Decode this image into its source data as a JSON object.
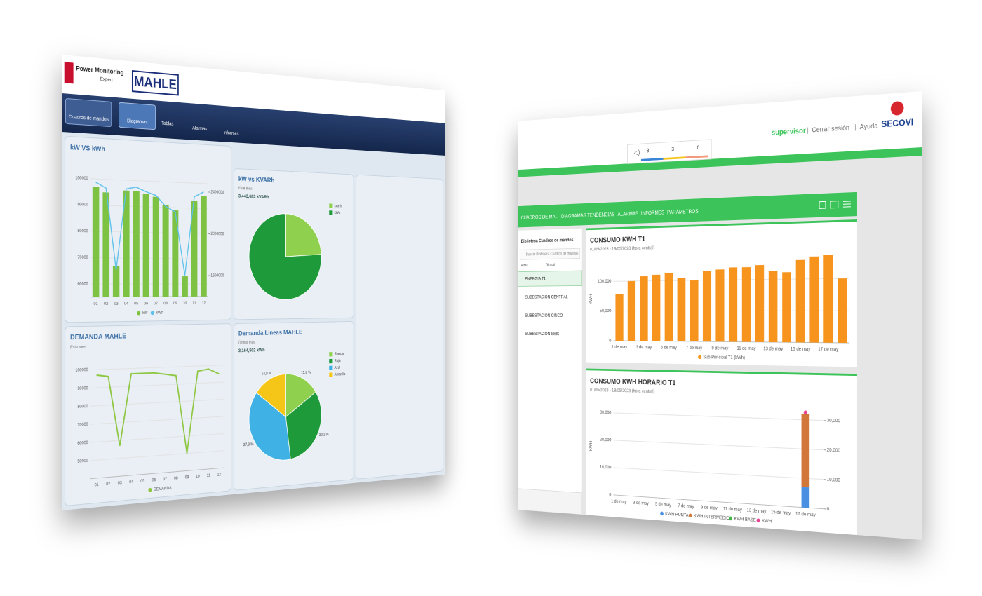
{
  "left_screen": {
    "header": {
      "product": [
        "Power Monitoring",
        "Expert"
      ],
      "logo": "MAHLE"
    },
    "nav": [
      "Cuadros de mandos",
      "Diagramas",
      "Tablas",
      "Alarmas",
      "Informes"
    ],
    "charts": [
      {
        "type": "bar",
        "title": "kW VS kWh",
        "categories": [
          "01",
          "02",
          "03",
          "04",
          "05",
          "06",
          "07",
          "08",
          "09",
          "10",
          "11",
          "12"
        ],
        "series": [
          {
            "name": "kW",
            "color": "#7dc242",
            "values": [
              97000,
              95000,
              67000,
              96000,
              96000,
              95000,
              94000,
              91000,
              89000,
              63000,
              93000,
              95000
            ]
          },
          {
            "name": "kWh",
            "color": "#5bc0eb",
            "axis": "y2",
            "values": [
              2450000,
              2400000,
              1650000,
              2400000,
              2420000,
              2380000,
              2350000,
              2250000,
              2200000,
              1600000,
              2350000,
              2400000
            ]
          }
        ],
        "ylim": [
          55000,
          105000
        ],
        "yticks": [
          60000,
          70000,
          80000,
          90000,
          100000
        ],
        "y2lim": [
          1400000,
          2600000
        ],
        "y2ticks": [
          1600000,
          2000000,
          2400000
        ]
      },
      {
        "type": "pie",
        "title": "kW vs KVARh",
        "subtitle": "Este mes",
        "total": "3,443,683 kVARh",
        "categories": [
          "kvarh",
          "kWh"
        ],
        "colors": [
          "#8fd14f",
          "#1f9a3a"
        ],
        "values": [
          24,
          76
        ]
      },
      {
        "type": "line",
        "title": "DEMANDA MAHLE",
        "subtitle": "Este mes",
        "categories": [
          "01",
          "02",
          "03",
          "04",
          "05",
          "06",
          "07",
          "08",
          "09",
          "10",
          "11",
          "12"
        ],
        "series": [
          {
            "name": "DEMANDA",
            "color": "#8dc63f",
            "values": [
              97000,
              96000,
              57000,
              97000,
              97000,
              97000,
              96000,
              95000,
              50000,
              97000,
              98000,
              95000
            ]
          }
        ],
        "ylim": [
          40000,
          105000
        ],
        "yticks": [
          50000,
          60000,
          70000,
          80000,
          90000,
          100000
        ]
      },
      {
        "type": "pie",
        "title": "Demanda Lineas MAHLE",
        "subtitle": "Último mes",
        "total": "3,164,502 kWh",
        "categories": [
          "Blanca",
          "Roja",
          "Azul",
          "Amarilla"
        ],
        "colors": [
          "#8fd14f",
          "#1f9a3a",
          "#3fb1e5",
          "#f5c518"
        ],
        "values": [
          15.8,
          32.1,
          37.3,
          14.8
        ],
        "value_labels": [
          "15,8 %",
          "32,1 %",
          "37,3 %",
          "14,8 %"
        ]
      }
    ]
  },
  "right_screen": {
    "user": "supervisor",
    "links": [
      "Cerrar sesión",
      "Ayuda"
    ],
    "logo": "SECOVI",
    "alarm_counts": [
      3,
      3,
      0
    ],
    "nav": [
      "CUADROS DE MA...",
      "DIAGRAMAS",
      "TENDENCIAS",
      "ALARMAS",
      "INFORMES",
      "PARÁMETROS"
    ],
    "library": {
      "title": "Biblioteca Cuadros de mandos",
      "search": "Buscar Biblioteca Cuadros de mandos",
      "back": "Atrás",
      "scope": "Global",
      "items": [
        "ENERGIA T1",
        "SUBESTACION CENTRAL",
        "SUBESTACION CINCO",
        "SUBESTACION SEIS"
      ]
    },
    "charts": [
      {
        "type": "bar",
        "title": "CONSUMO KWH T1",
        "subtitle": "01/05/2023 - 18/05/2023 (hora central)",
        "y_label": "KWH",
        "categories": [
          "1 de may",
          null,
          "3 de may",
          null,
          "5 de may",
          null,
          "7 de may",
          null,
          "9 de may",
          null,
          "11 de may",
          null,
          "13 de may",
          null,
          "15 de may",
          null,
          "17 de may",
          null
        ],
        "series": [
          {
            "name": "Sub Principal T1 (kWh)",
            "color": "#f7941d",
            "values": [
              78000,
              100000,
              108000,
              110000,
              113000,
              104000,
              100000,
              115000,
              117000,
              120000,
              120000,
              123000,
              113000,
              111000,
              130000,
              135000,
              137000,
              100000
            ]
          }
        ],
        "ylim": [
          0,
          140000
        ],
        "yticks": [
          0,
          {
            "value": 50000,
            "label": "50,000"
          },
          {
            "value": 100000,
            "label": "100,000"
          }
        ]
      },
      {
        "type": "stacked_bar",
        "title": "CONSUMO KWH HORARIO T1",
        "subtitle": "01/05/2023 - 18/05/2023 (hora central)",
        "y_label": "KWH",
        "categories": [
          "1 de may",
          null,
          "3 de may",
          null,
          "5 de may",
          null,
          "7 de may",
          null,
          "9 de may",
          null,
          "11 de may",
          null,
          "13 de may",
          null,
          "15 de may",
          null,
          "17 de may",
          null
        ],
        "series": [
          {
            "name": "KWH PUNTA",
            "color": "#4a90e2",
            "values": [
              null,
              null,
              null,
              null,
              null,
              null,
              null,
              null,
              null,
              null,
              null,
              null,
              null,
              null,
              null,
              null,
              7000,
              null
            ]
          },
          {
            "name": "KWH INTERMEDIO",
            "color": "#d2773a",
            "values": [
              null,
              null,
              null,
              null,
              null,
              null,
              null,
              null,
              null,
              null,
              null,
              null,
              null,
              null,
              null,
              null,
              25000,
              null
            ]
          },
          {
            "name": "KWH BASE",
            "color": "#43b649",
            "values": [
              null,
              null,
              null,
              null,
              null,
              null,
              null,
              null,
              null,
              null,
              null,
              null,
              null,
              null,
              null,
              null,
              null,
              null
            ]
          },
          {
            "name": "KWH",
            "color": "#e84393",
            "axis": "y2",
            "values": [
              null,
              null,
              null,
              null,
              null,
              null,
              null,
              null,
              null,
              null,
              null,
              null,
              null,
              null,
              null,
              null,
              32500,
              null
            ]
          }
        ],
        "ylim": [
          0,
          35000
        ],
        "yticks": [
          0,
          {
            "value": 10000,
            "label": "10,000"
          },
          {
            "value": 20000,
            "label": "20,000"
          },
          {
            "value": 30000,
            "label": "30,000"
          }
        ],
        "y2lim": [
          0,
          35000
        ],
        "y2ticks": [
          0,
          {
            "value": 10000,
            "label": "10,000"
          },
          {
            "value": 20000,
            "label": "20,000"
          },
          {
            "value": 30000,
            "label": "30,000"
          }
        ]
      }
    ]
  }
}
